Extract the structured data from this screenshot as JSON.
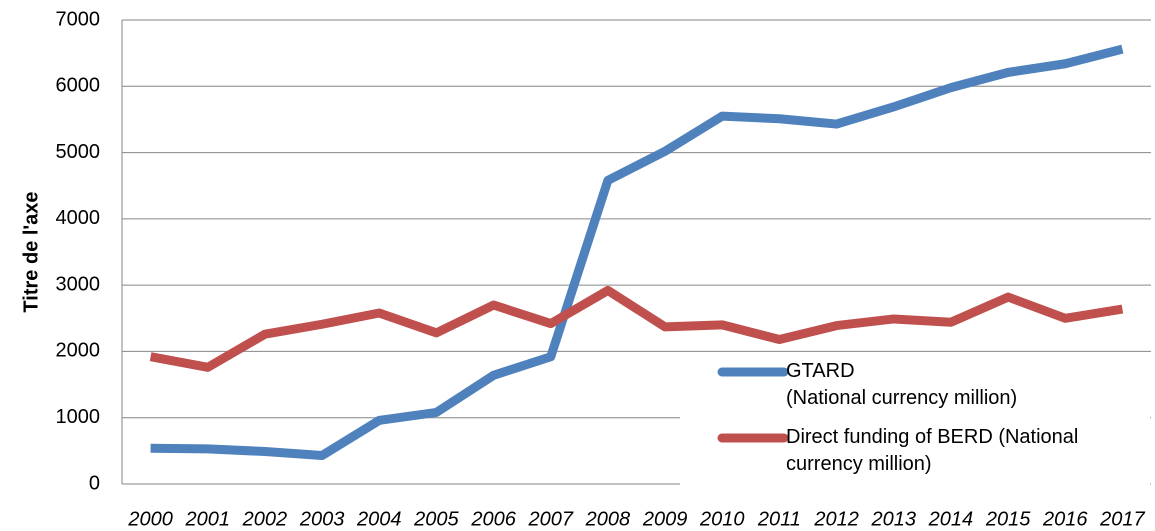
{
  "chart_data": {
    "type": "line",
    "y_axis_label": "Titre de l'axe",
    "categories": [
      "2000",
      "2001",
      "2002",
      "2003",
      "2004",
      "2005",
      "2006",
      "2007",
      "2008",
      "2009",
      "2010",
      "2011",
      "2012",
      "2013",
      "2014",
      "2015",
      "2016",
      "2017"
    ],
    "series": [
      {
        "name": "GTARD\n(National currency million)",
        "color": "#4f81bd",
        "values": [
          540,
          530,
          490,
          430,
          960,
          1080,
          1640,
          1920,
          4580,
          5020,
          5550,
          5510,
          5430,
          5690,
          5980,
          6210,
          6340,
          6560
        ]
      },
      {
        "name": "Direct funding of BERD (National currency million)",
        "color": "#c0504d",
        "values": [
          1920,
          1760,
          2260,
          2410,
          2580,
          2280,
          2700,
          2420,
          2920,
          2370,
          2400,
          2180,
          2390,
          2490,
          2440,
          2820,
          2500,
          2640
        ]
      }
    ],
    "ylim": [
      0,
      7000
    ],
    "yticks": [
      0,
      1000,
      2000,
      3000,
      4000,
      5000,
      6000,
      7000
    ],
    "grid": true,
    "legend": "lower right"
  }
}
